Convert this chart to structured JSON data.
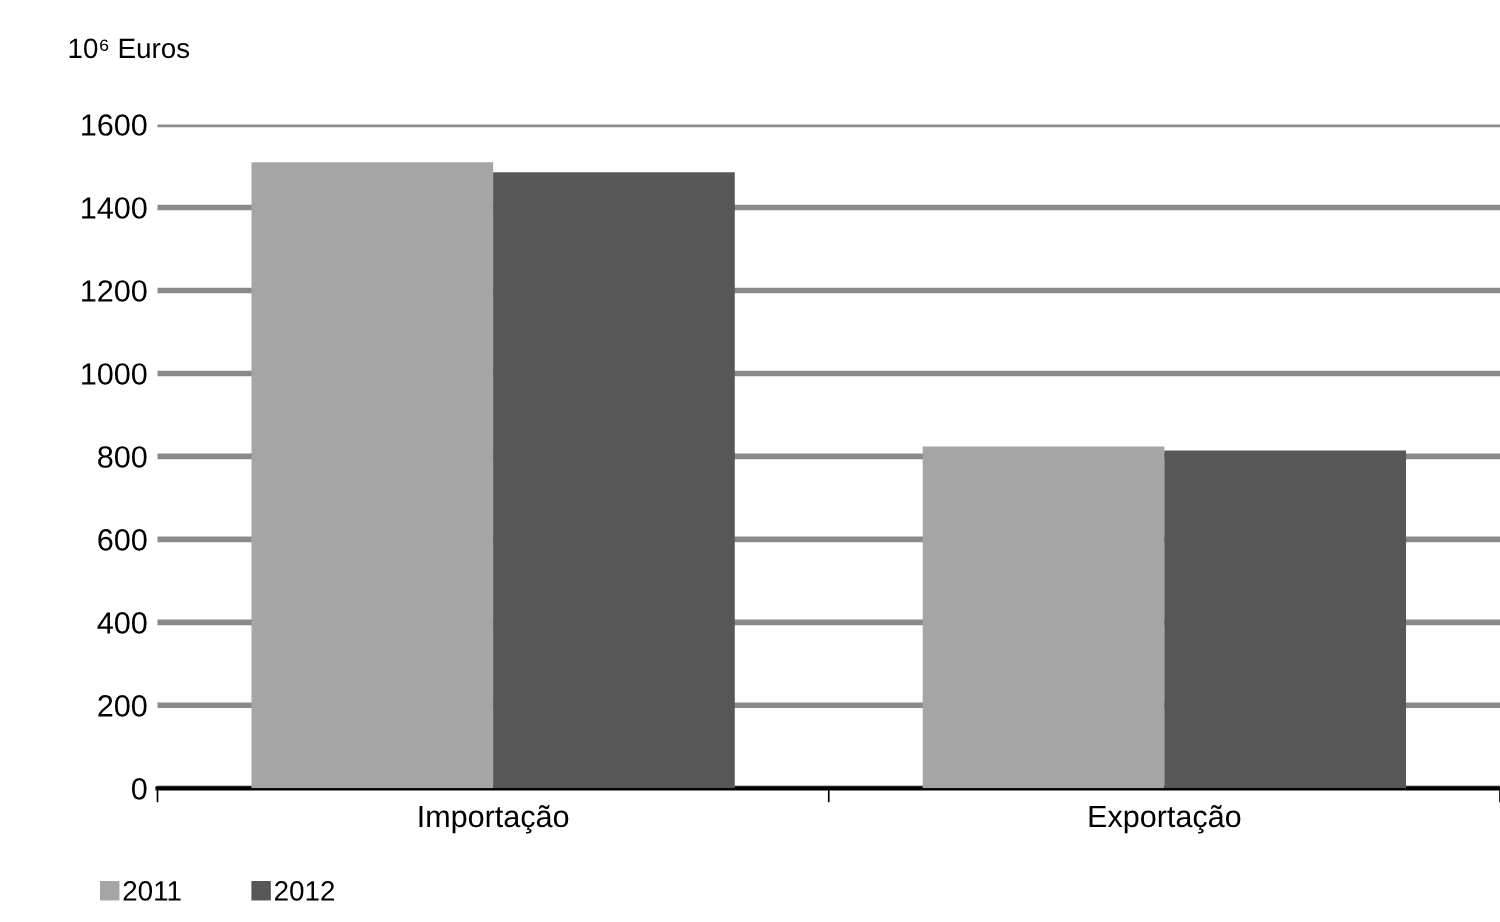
{
  "chart_data": {
    "type": "bar",
    "ylabel": "10⁶ Euros",
    "categories": [
      "Importação",
      "Exportação"
    ],
    "series": [
      {
        "name": "2011",
        "color": "#a5a5a5",
        "values": [
          1509,
          824
        ]
      },
      {
        "name": "2012",
        "color": "#575757",
        "values": [
          1485,
          814
        ]
      }
    ],
    "ylim": [
      0,
      1600
    ],
    "yticks": [
      0,
      200,
      400,
      600,
      800,
      1000,
      1200,
      1400,
      1600
    ],
    "grid": "y",
    "legend": "bottom left"
  }
}
